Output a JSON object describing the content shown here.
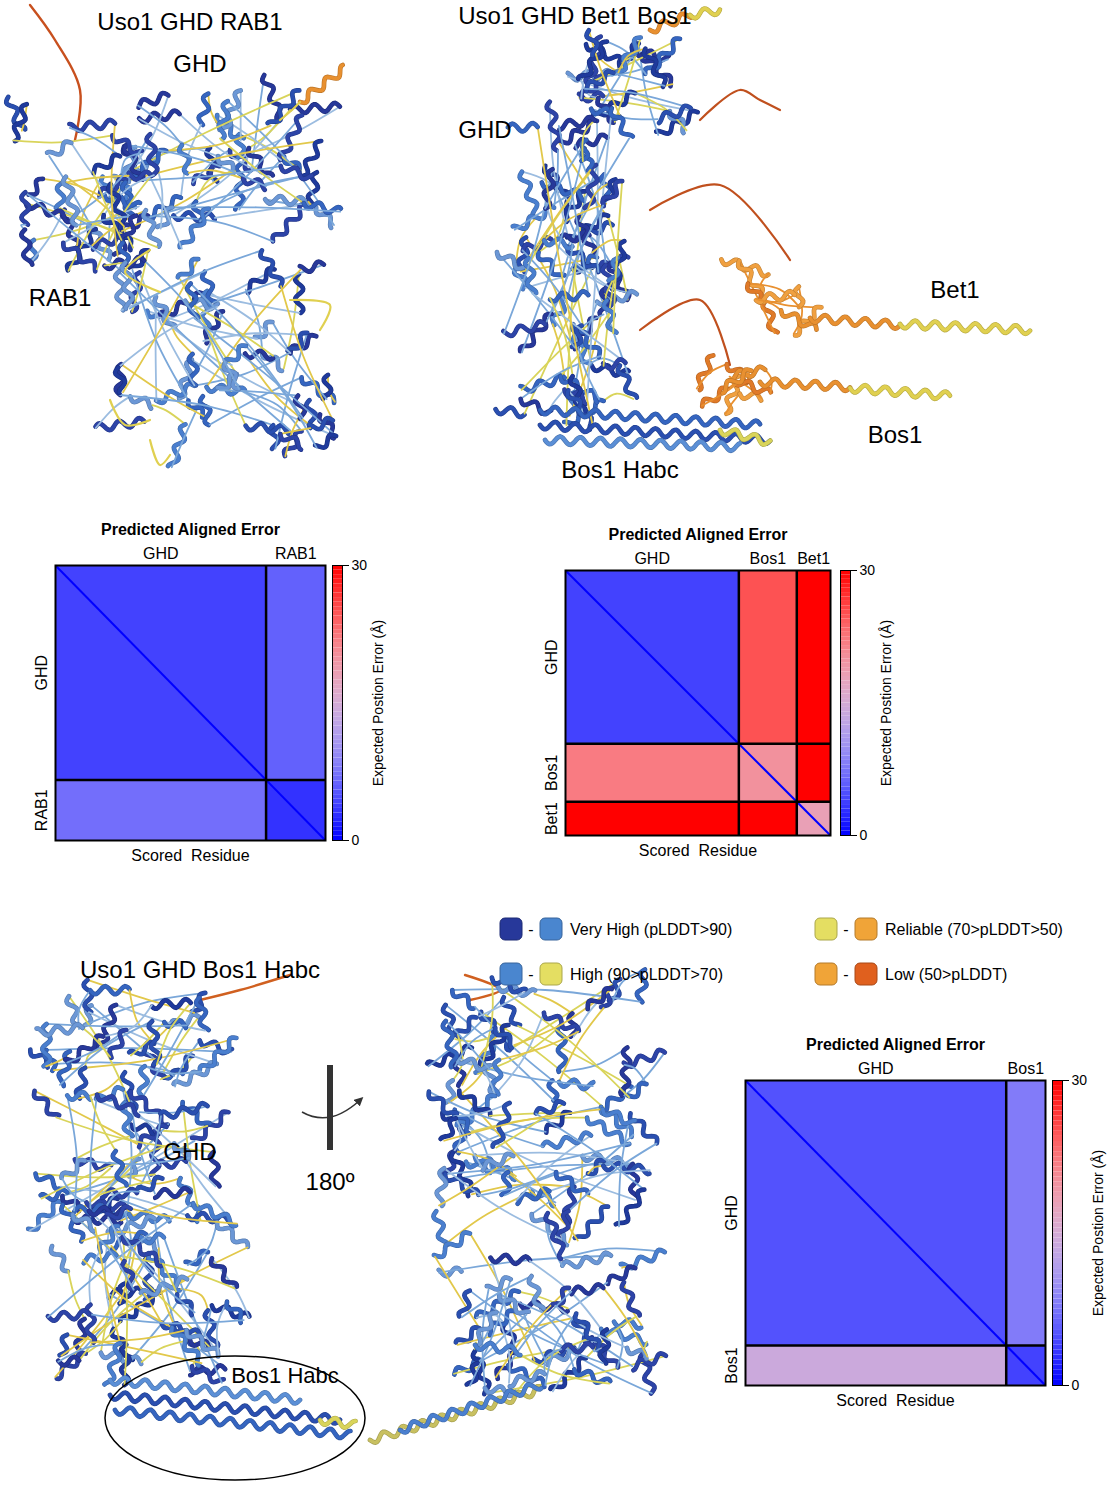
{
  "structures": [
    {
      "title": "Uso1 GHD RAB1",
      "labels": [
        "GHD",
        "RAB1"
      ]
    },
    {
      "title": "Uso1 GHD Bet1 Bos1",
      "labels": [
        "GHD",
        "Bet1",
        "Bos1",
        "Bos1 Habc"
      ]
    },
    {
      "title": "Uso1 GHD Bos1 Habc",
      "labels": [
        "GHD",
        "Bos1 Habc",
        "180º"
      ]
    }
  ],
  "plddt_legend": {
    "separator": "-",
    "items": [
      {
        "label": "Very High (pLDDT>90)",
        "colors": [
          "#27389a",
          "#4a86cf"
        ]
      },
      {
        "label": "High (90>pLDDT>70)",
        "colors": [
          "#4a86cf",
          "#e4de62"
        ]
      },
      {
        "label": "Reliable (70>pLDDT>50)",
        "colors": [
          "#e4de62",
          "#f0a438"
        ]
      },
      {
        "label": "Low (50>pLDDT)",
        "colors": [
          "#f0a438",
          "#e0601e"
        ]
      }
    ]
  },
  "chart_data": [
    {
      "type": "heatmap",
      "title": "Predicted Aligned Error",
      "x_label": "Scored  Residue",
      "segments": [
        {
          "name": "GHD",
          "residues": 730
        },
        {
          "name": "RAB1",
          "residues": 206
        }
      ],
      "cells": [
        [
          4,
          6
        ],
        [
          7,
          3
        ]
      ],
      "diagonal": 0,
      "colorbar": {
        "label": "Expected Postion Error (Å)",
        "range": [
          0,
          30
        ],
        "ticks": [
          0,
          30
        ],
        "colors": [
          "#0000ff",
          "#ffffff",
          "#ff0000"
        ]
      }
    },
    {
      "type": "heatmap",
      "title": "Predicted Aligned Error",
      "x_label": "Scored  Residue",
      "segments": [
        {
          "name": "GHD",
          "residues": 730
        },
        {
          "name": "Bos1",
          "residues": 244
        },
        {
          "name": "Bet1",
          "residues": 142
        }
      ],
      "cells": [
        [
          4,
          25,
          30
        ],
        [
          22,
          20,
          30
        ],
        [
          30,
          30,
          18
        ]
      ],
      "diagonal": 0,
      "colorbar": {
        "label": "Expected Postion Error (Å)",
        "range": [
          0,
          30
        ],
        "ticks": [
          0,
          30
        ],
        "colors": [
          "#0000ff",
          "#ffffff",
          "#ff0000"
        ]
      }
    },
    {
      "type": "heatmap",
      "title": "Predicted Aligned Error",
      "x_label": "Scored  Residue",
      "segments": [
        {
          "name": "GHD",
          "residues": 730
        },
        {
          "name": "Bos1",
          "residues": 110
        }
      ],
      "cells": [
        [
          5,
          8
        ],
        [
          14,
          4
        ]
      ],
      "diagonal": 0,
      "colorbar": {
        "label": "Expected Postion Error (Å)",
        "range": [
          0,
          30
        ],
        "ticks": [
          0,
          30
        ],
        "colors": [
          "#0000ff",
          "#ffffff",
          "#ff0000"
        ]
      }
    }
  ]
}
